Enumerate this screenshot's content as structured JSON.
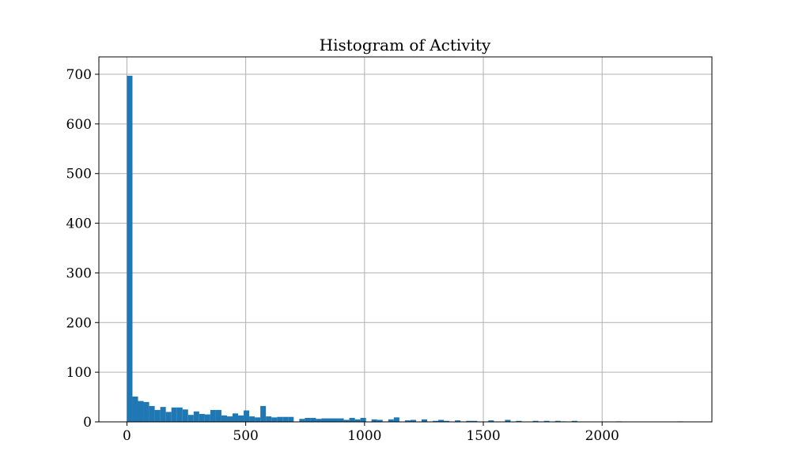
{
  "chart_data": {
    "type": "bar",
    "title": "Histogram of Activity",
    "xlabel": "",
    "ylabel": "",
    "xlim": [
      -118,
      2462
    ],
    "ylim": [
      0,
      735
    ],
    "xticks": [
      0,
      500,
      1000,
      1500,
      2000
    ],
    "yticks": [
      0,
      100,
      200,
      300,
      400,
      500,
      600,
      700
    ],
    "grid": true,
    "bar_color": "#1f77b4",
    "bin_width": 23.4,
    "bin_start": 0,
    "values": [
      697,
      51,
      42,
      40,
      32,
      24,
      30,
      20,
      29,
      29,
      25,
      14,
      21,
      16,
      15,
      24,
      24,
      13,
      11,
      17,
      13,
      23,
      11,
      9,
      32,
      11,
      9,
      10,
      10,
      10,
      0,
      6,
      8,
      8,
      6,
      7,
      7,
      7,
      7,
      4,
      8,
      5,
      8,
      0,
      5,
      4,
      0,
      5,
      9,
      0,
      3,
      4,
      0,
      5,
      0,
      2,
      4,
      2,
      0,
      3,
      0,
      2,
      2,
      0,
      0,
      3,
      0,
      0,
      4,
      0,
      2,
      0,
      0,
      2,
      0,
      2,
      0,
      2,
      1,
      0,
      2,
      0,
      0,
      0,
      0,
      0,
      0,
      0,
      1,
      0,
      0,
      0,
      0,
      0,
      0,
      0,
      0,
      0,
      0,
      1
    ]
  }
}
